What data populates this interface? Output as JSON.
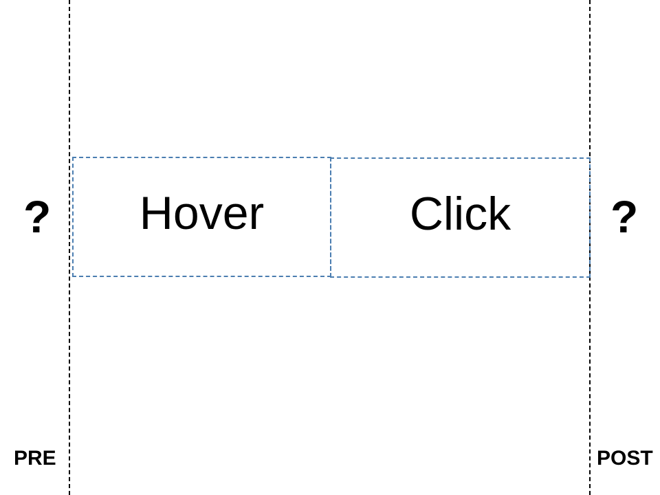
{
  "steps": {
    "hover": "Hover",
    "click": "Click"
  },
  "unknown": {
    "pre": "?",
    "post": "?"
  },
  "phases": {
    "pre": "PRE",
    "post": "POST"
  },
  "colors": {
    "box_border": "#4a7db0",
    "boundary_line": "#000000",
    "text": "#000000",
    "background": "#ffffff"
  }
}
